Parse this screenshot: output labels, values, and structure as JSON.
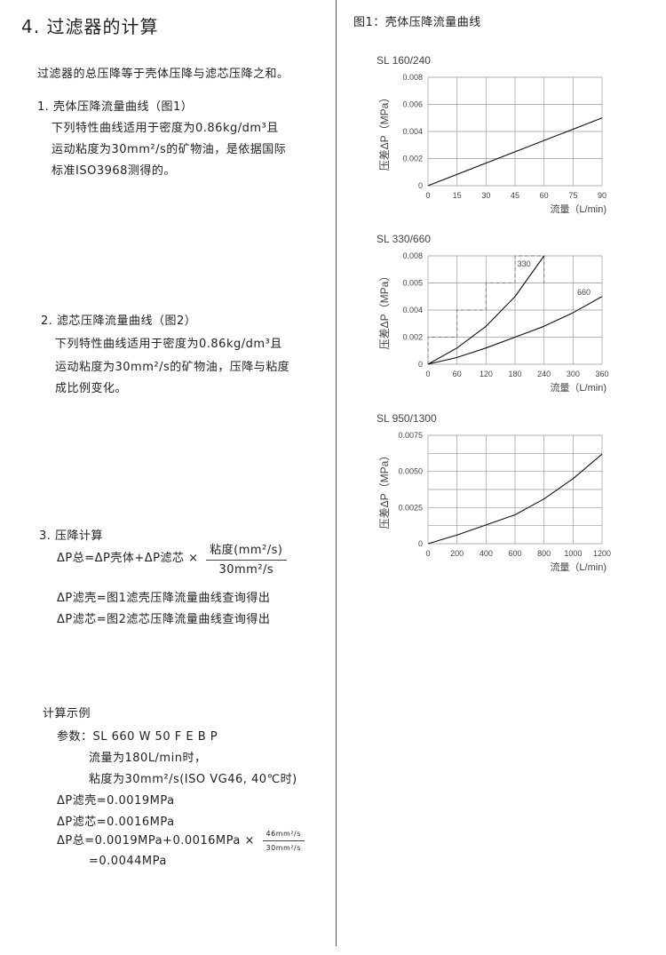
{
  "left": {
    "title": "4. 过滤器的计算",
    "intro": "过滤器的总压降等于壳体压降与滤芯压降之和。",
    "s1": {
      "heading": "1. 壳体压降流量曲线（图1）",
      "lines": [
        "下列特性曲线适用于密度为0.86kg/dm³且",
        "运动粘度为30mm²/s的矿物油，是依据国际",
        "标准ISO3968测得的。"
      ]
    },
    "s2": {
      "heading": "2. 滤芯压降流量曲线（图2）",
      "lines": [
        "下列特性曲线适用于密度为0.86kg/dm³且",
        "运动粘度为30mm²/s的矿物油，压降与粘度",
        "成比例变化。"
      ]
    },
    "s3": {
      "heading": "3. 压降计算",
      "formula": "ΔP总=ΔP壳体+ΔP滤芯 ×",
      "frac_num": "粘度(mm²/s)",
      "frac_den": "30mm²/s",
      "lines": [
        "ΔP滤壳=图1滤壳压降流量曲线查询得出",
        "ΔP滤芯=图2滤芯压降流量曲线查询得出"
      ]
    },
    "example": {
      "heading": "计算示例",
      "params": "参数：SL 660 W 50 F E B P",
      "flow": "流量为180L/min时，",
      "visc": "粘度为30mm²/s(ISO VG46, 40℃时)",
      "dp_shell": "ΔP滤壳=0.0019MPa",
      "dp_elem": "ΔP滤芯=0.0016MPa",
      "dp_total": "ΔP总=0.0019MPa+0.0016MPa ×",
      "frac_num": "46mm²/s",
      "frac_den": "30mm²/s",
      "result": "=0.0044MPa"
    }
  },
  "right": {
    "heading": "图1：壳体压降流量曲线"
  },
  "chart_data": [
    {
      "type": "line",
      "title": "SL 160/240",
      "xlabel": "流量（L/min)",
      "ylabel": "压差ΔP（MPa）",
      "xlim": [
        0,
        90
      ],
      "ylim": [
        0,
        0.008
      ],
      "xticks": [
        "0",
        "15",
        "30",
        "45",
        "60",
        "75",
        "90"
      ],
      "yticks": [
        "0",
        "0.002",
        "0.004",
        "0.006",
        "0.008"
      ],
      "grid": true,
      "series": [
        {
          "x": [
            0,
            90
          ],
          "y": [
            0,
            0.005
          ]
        }
      ]
    },
    {
      "type": "line",
      "title": "SL 330/660",
      "xlabel": "流量（L/min)",
      "ylabel": "压差ΔP（MPa）",
      "xlim": [
        0,
        360
      ],
      "ylim": [
        0,
        0.008
      ],
      "xticks": [
        "0",
        "60",
        "120",
        "180",
        "240",
        "300",
        "360"
      ],
      "yticks": [
        "0",
        "0.002",
        "0.004",
        "0.005",
        "0.008"
      ],
      "grid": true,
      "series": [
        {
          "name": "330",
          "x": [
            0,
            60,
            120,
            180,
            240
          ],
          "y": [
            0,
            0.0012,
            0.0028,
            0.005,
            0.008
          ]
        },
        {
          "name": "660",
          "x": [
            0,
            60,
            120,
            180,
            240,
            300,
            360
          ],
          "y": [
            0,
            0.0005,
            0.0012,
            0.002,
            0.0028,
            0.0038,
            0.005
          ]
        }
      ]
    },
    {
      "type": "line",
      "title": "SL 950/1300",
      "xlabel": "流量（L/min)",
      "ylabel": "压差ΔP（MPa）",
      "xlim": [
        0,
        1200
      ],
      "ylim": [
        0,
        0.0075
      ],
      "xticks": [
        "0",
        "200",
        "400",
        "600",
        "800",
        "1000",
        "1200"
      ],
      "yticks": [
        "0",
        "0.0025",
        "0.0050",
        "0.0075"
      ],
      "grid": true,
      "series": [
        {
          "x": [
            0,
            200,
            400,
            600,
            800,
            1000,
            1200
          ],
          "y": [
            0,
            0.0006,
            0.0013,
            0.002,
            0.0031,
            0.0045,
            0.0062
          ]
        }
      ]
    }
  ]
}
